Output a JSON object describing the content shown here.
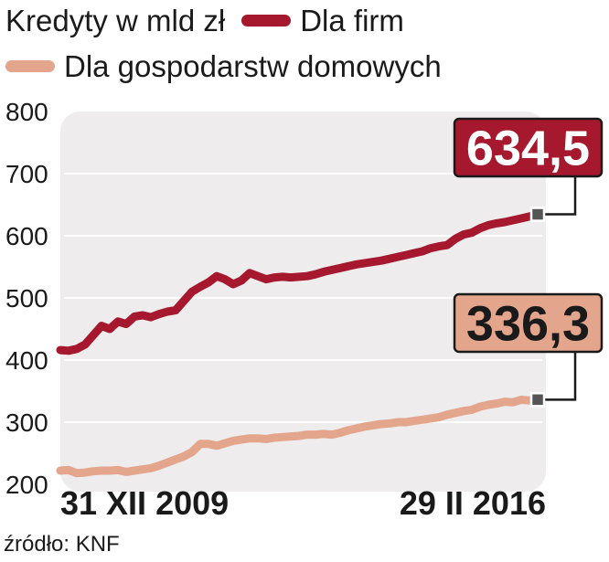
{
  "legend": {
    "title": "Kredyty w mld zł",
    "series": [
      {
        "label": "Dla firm",
        "color": "#a5182d"
      },
      {
        "label": "Dla gospodarstw domowych",
        "color": "#e3a58c"
      }
    ]
  },
  "callouts": [
    {
      "text": "634,5",
      "bg": "#a5182d",
      "fg": "#ffffff"
    },
    {
      "text": "336,3",
      "bg": "#e3a58c",
      "fg": "#1a1a1a"
    }
  ],
  "source": "źródło: KNF",
  "chart_data": {
    "type": "line",
    "xlabel": "",
    "ylabel": "",
    "ylim": [
      200,
      800
    ],
    "yticks": [
      800,
      700,
      600,
      500,
      400,
      300,
      200
    ],
    "x_tick_labels": [
      "31 XII 2009",
      "29 II 2016"
    ],
    "grid": true,
    "series": [
      {
        "name": "Dla firm",
        "color": "#a5182d",
        "values": [
          416,
          415,
          418,
          425,
          440,
          455,
          450,
          462,
          458,
          470,
          472,
          469,
          474,
          478,
          480,
          495,
          510,
          518,
          525,
          535,
          530,
          522,
          528,
          540,
          535,
          530,
          533,
          534,
          533,
          534,
          535,
          538,
          542,
          545,
          548,
          551,
          554,
          556,
          558,
          560,
          563,
          566,
          569,
          572,
          575,
          580,
          583,
          585,
          595,
          602,
          605,
          612,
          617,
          620,
          622,
          625,
          628,
          631,
          634.5
        ]
      },
      {
        "name": "Dla gospodarstw domowych",
        "color": "#e3a58c",
        "values": [
          222,
          223,
          218,
          219,
          221,
          222,
          222,
          223,
          220,
          222,
          224,
          226,
          230,
          235,
          240,
          245,
          252,
          265,
          265,
          262,
          266,
          270,
          272,
          274,
          274,
          273,
          275,
          276,
          277,
          278,
          280,
          280,
          281,
          280,
          283,
          287,
          290,
          293,
          295,
          297,
          298,
          300,
          300,
          302,
          304,
          306,
          308,
          312,
          315,
          318,
          320,
          325,
          328,
          330,
          333,
          332,
          336,
          335,
          336.3
        ]
      }
    ]
  }
}
